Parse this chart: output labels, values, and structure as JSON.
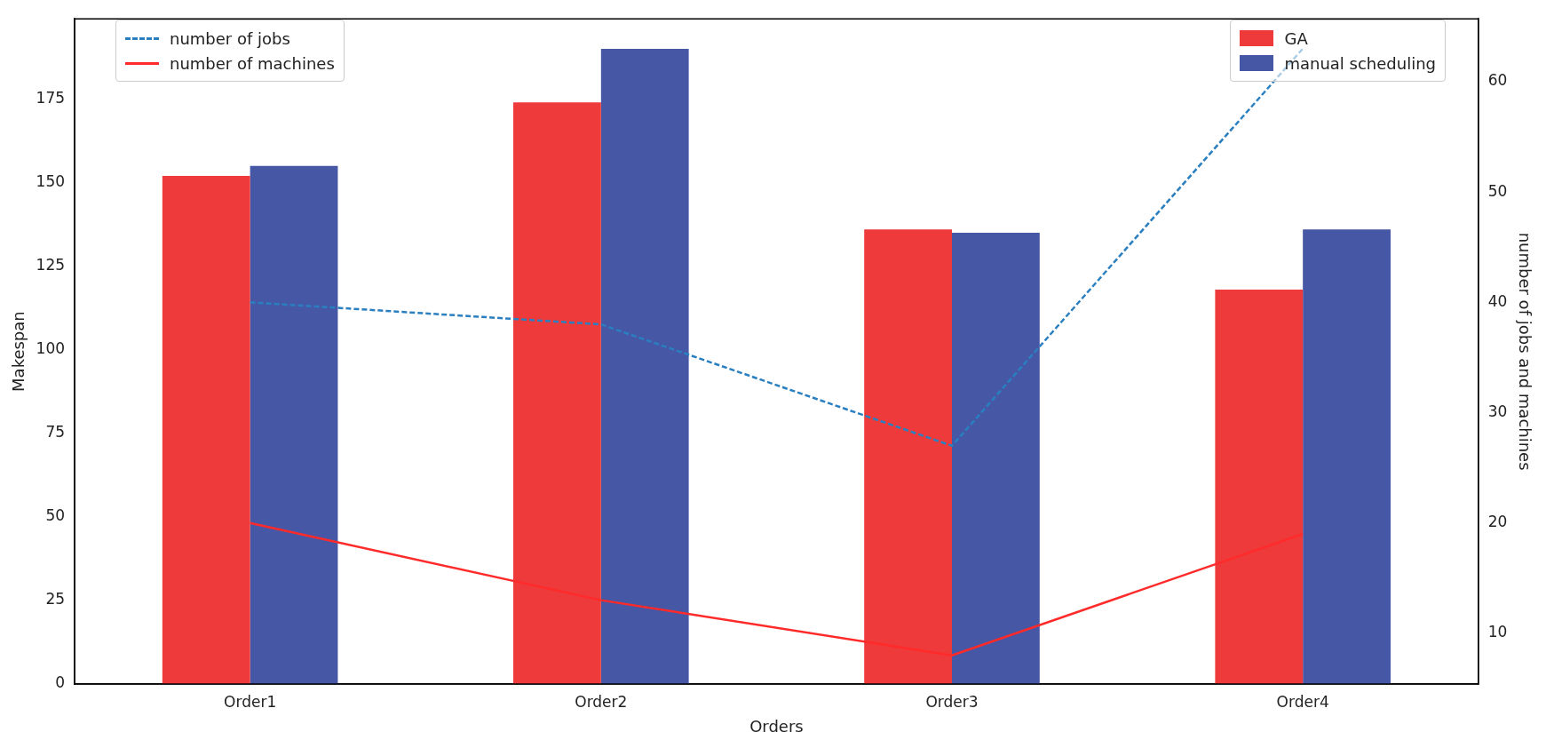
{
  "chart_data": {
    "type": "bar",
    "xlabel": "Orders",
    "ylabel": "Makespan",
    "y2label": "number of jobs and machines",
    "categories": [
      "Order1",
      "Order2",
      "Order3",
      "Order4"
    ],
    "series": [
      {
        "name": "GA",
        "color": "#ee3a3a",
        "values": [
          152,
          174,
          136,
          118
        ]
      },
      {
        "name": "manual scheduling",
        "color": "#4657a5",
        "values": [
          155,
          190,
          135,
          136
        ]
      },
      {
        "name": "number of jobs",
        "type": "line",
        "axis": "y2",
        "line_style": "dashed",
        "color": "#2a7fc0",
        "values": [
          40,
          38,
          27,
          63
        ]
      },
      {
        "name": "number of machines",
        "type": "line",
        "axis": "y2",
        "line_style": "solid",
        "color": "#ff2a2a",
        "values": [
          20,
          13,
          8,
          19
        ]
      }
    ],
    "ylim": [
      0,
      199
    ],
    "yticks": [
      0,
      25,
      50,
      75,
      100,
      125,
      150,
      175
    ],
    "y2lim": [
      5.4,
      65.7
    ],
    "y2ticks": [
      10,
      20,
      30,
      40,
      50,
      60
    ],
    "legend": "top left",
    "grid": false
  }
}
